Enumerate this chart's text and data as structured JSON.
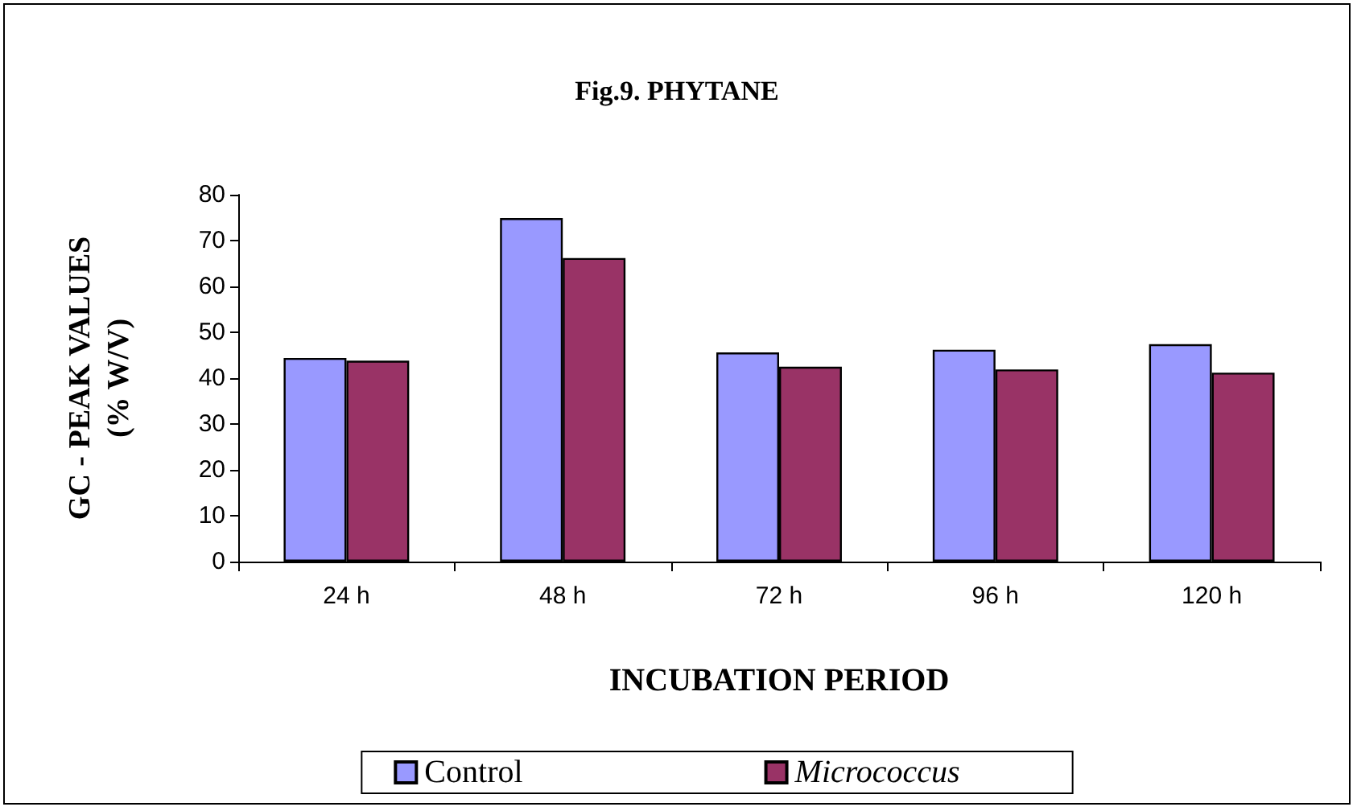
{
  "chart_data": {
    "type": "bar",
    "title": "Fig.9. PHYTANE",
    "xlabel": "INCUBATION PERIOD",
    "ylabel": "GC - PEAK VALUES\n(% W/V)",
    "categories": [
      "24 h",
      "48 h",
      "72 h",
      "96 h",
      "120 h"
    ],
    "series": [
      {
        "name": "Control",
        "color": "#9999ff",
        "values": [
          44.4,
          74.9,
          45.6,
          46.2,
          47.4
        ]
      },
      {
        "name": "Micrococcus",
        "color": "#993366",
        "values": [
          43.8,
          66.2,
          42.5,
          41.9,
          41.2
        ]
      }
    ],
    "ylim": [
      0,
      80
    ],
    "yticks": [
      0,
      10,
      20,
      30,
      40,
      50,
      60,
      70,
      80
    ],
    "grid": false,
    "legend": "bottom"
  }
}
